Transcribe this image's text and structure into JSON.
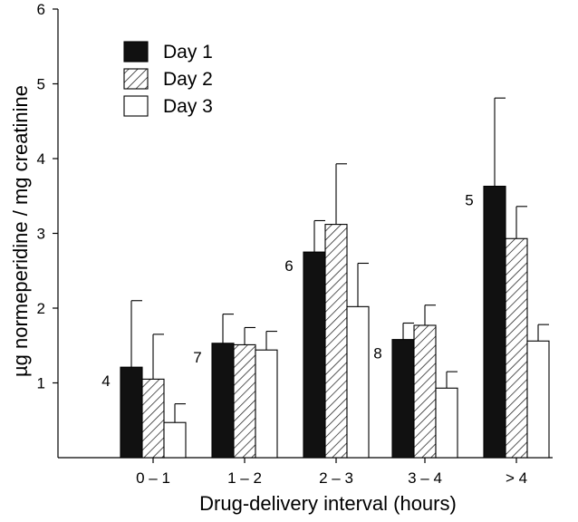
{
  "chart_data": {
    "type": "bar",
    "title": "",
    "xlabel": "Drug-delivery interval (hours)",
    "ylabel": "µg normeperidine / mg creatinine",
    "ylim": [
      0,
      6
    ],
    "yticks": [
      "1",
      "2",
      "3",
      "4",
      "5",
      "6"
    ],
    "categories": [
      "0 – 1",
      "1 – 2",
      "2 – 3",
      "3 – 4",
      "> 4"
    ],
    "n_labels": [
      "4",
      "7",
      "6",
      "8",
      "5"
    ],
    "legend_position": "top-left",
    "series": [
      {
        "name": "Day 1",
        "fill": "solid",
        "color": "#111111",
        "values": [
          1.21,
          1.53,
          2.75,
          1.58,
          3.63
        ],
        "errors": [
          0.89,
          0.39,
          0.42,
          0.22,
          1.18
        ]
      },
      {
        "name": "Day 2",
        "fill": "hatched",
        "color": "#111111",
        "values": [
          1.05,
          1.51,
          3.12,
          1.77,
          2.93
        ],
        "errors": [
          0.6,
          0.23,
          0.81,
          0.27,
          0.43
        ]
      },
      {
        "name": "Day 3",
        "fill": "open",
        "color": "#111111",
        "values": [
          0.47,
          1.44,
          2.02,
          0.93,
          1.56
        ],
        "errors": [
          0.25,
          0.25,
          0.58,
          0.22,
          0.22
        ]
      }
    ]
  }
}
